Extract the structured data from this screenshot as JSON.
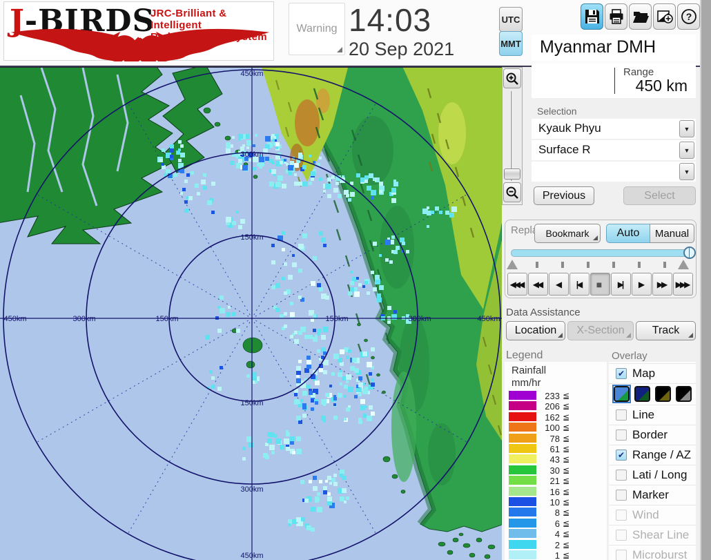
{
  "header": {
    "logo_j": "J",
    "logo_rest": "-BIRDS",
    "tagline1": "JRC-Brilliant & Intelligent",
    "tagline2": "Radar  Dialogic  System",
    "warning_label": "Warning",
    "time": "14:03",
    "date": "20 Sep 2021",
    "utc_label": "UTC",
    "mmt_label": "MMT",
    "toolbar_icons": [
      "save",
      "print",
      "open",
      "capture",
      "help"
    ]
  },
  "station": {
    "name": "Myanmar DMH",
    "range_label": "Range",
    "range_value": "450 km"
  },
  "selection": {
    "label": "Selection",
    "combo1": "Kyauk Phyu",
    "combo2": "Surface R",
    "combo3": "",
    "previous_label": "Previous",
    "select_label": "Select"
  },
  "replay": {
    "label": "Replay",
    "bookmark_label": "Bookmark",
    "auto_label": "Auto",
    "manual_label": "Manual",
    "controls": [
      "◀◀◀",
      "◀◀",
      "◀",
      "|◀",
      "■",
      "▶|",
      "▶",
      "▶▶",
      "▶▶▶"
    ]
  },
  "data_assistance": {
    "label": "Data Assistance",
    "location_label": "Location",
    "xsection_label": "X-Section",
    "track_label": "Track"
  },
  "legend": {
    "title": "Legend",
    "unit_line1": "Rainfall",
    "unit_line2": "mm/hr",
    "leq": "≦",
    "entries": [
      {
        "value": "233",
        "color": "#A000D2"
      },
      {
        "value": "206",
        "color": "#C60085"
      },
      {
        "value": "162",
        "color": "#E61212"
      },
      {
        "value": "100",
        "color": "#EE7618"
      },
      {
        "value": "78",
        "color": "#F0A018"
      },
      {
        "value": "61",
        "color": "#EFC612"
      },
      {
        "value": "43",
        "color": "#F0EF60"
      },
      {
        "value": "30",
        "color": "#25C63B"
      },
      {
        "value": "21",
        "color": "#74DE46"
      },
      {
        "value": "16",
        "color": "#A6E78E"
      },
      {
        "value": "10",
        "color": "#1C4FE3"
      },
      {
        "value": "8",
        "color": "#2478EC"
      },
      {
        "value": "6",
        "color": "#2497E8"
      },
      {
        "value": "4",
        "color": "#70BCEA"
      },
      {
        "value": "2",
        "color": "#3FD6EF"
      },
      {
        "value": "1",
        "color": "#B2F0F8"
      }
    ]
  },
  "overlay": {
    "title": "Overlay",
    "items": [
      {
        "label": "Map",
        "checked": true,
        "disabled": false
      },
      {
        "label": "Line",
        "checked": false,
        "disabled": false
      },
      {
        "label": "Border",
        "checked": false,
        "disabled": false
      },
      {
        "label": "Range / AZ",
        "checked": true,
        "disabled": false
      },
      {
        "label": "Lati / Long",
        "checked": false,
        "disabled": false
      },
      {
        "label": "Marker",
        "checked": false,
        "disabled": false
      },
      {
        "label": "Wind",
        "checked": false,
        "disabled": true
      },
      {
        "label": "Shear Line",
        "checked": false,
        "disabled": true
      },
      {
        "label": "Microburst",
        "checked": false,
        "disabled": true
      }
    ],
    "map_styles": [
      {
        "a": "#4a86d8",
        "b": "#169a40"
      },
      {
        "a": "#10207e",
        "b": "#0e5a20"
      },
      {
        "a": "#000000",
        "b": "#6e6410"
      },
      {
        "a": "#000000",
        "b": "#8c8c8c"
      }
    ],
    "check_glyph": "✔"
  },
  "map": {
    "v_labels": [
      "450km",
      "300km",
      "150km",
      "150km",
      "300km",
      "450km"
    ],
    "h_labels": [
      "450km",
      "300km",
      "150km",
      "150km",
      "300km",
      "450km"
    ]
  }
}
